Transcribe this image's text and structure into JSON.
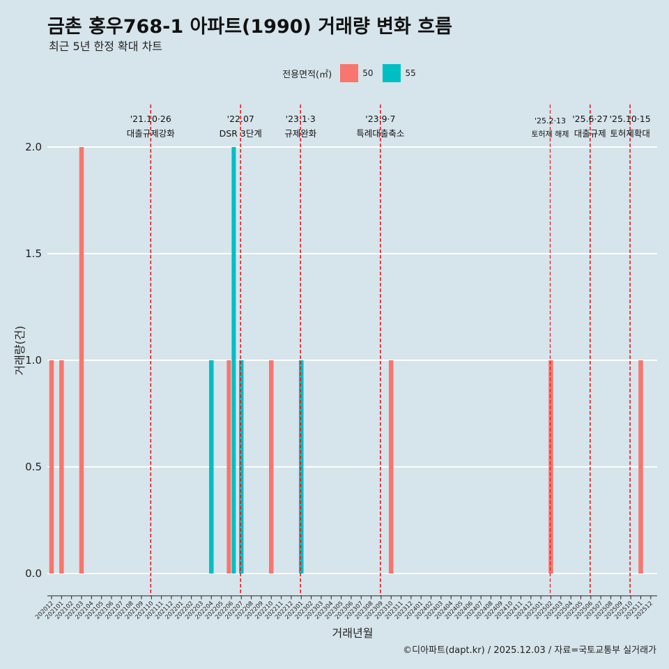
{
  "chart_data": {
    "type": "bar",
    "title": "금촌 홍우768-1 아파트(1990) 거래량 변화 흐름",
    "subtitle": "최근 5년 한정 확대 차트",
    "xlabel": "거래년월",
    "ylabel": "거래량(건)",
    "ylim": [
      0,
      2
    ],
    "yticks": [
      "0.0",
      "0.5",
      "1.0",
      "1.5",
      "2.0"
    ],
    "legend": {
      "title": "전용면적(㎡)",
      "position": "top",
      "entries": [
        {
          "name": "50",
          "color": "#f8766d"
        },
        {
          "name": "55",
          "color": "#00bfc4"
        }
      ]
    },
    "categories": [
      "202012",
      "202101",
      "202102",
      "202103",
      "202104",
      "202105",
      "202106",
      "202107",
      "202108",
      "202109",
      "202110",
      "202111",
      "202112",
      "202201",
      "202202",
      "202203",
      "202204",
      "202205",
      "202206",
      "202207",
      "202208",
      "202209",
      "202210",
      "202211",
      "202212",
      "202301",
      "202302",
      "202303",
      "202304",
      "202305",
      "202306",
      "202307",
      "202308",
      "202309",
      "202310",
      "202311",
      "202312",
      "202401",
      "202402",
      "202403",
      "202404",
      "202405",
      "202406",
      "202407",
      "202408",
      "202409",
      "202410",
      "202411",
      "202412",
      "202501",
      "202502",
      "202503",
      "202504",
      "202505",
      "202506",
      "202507",
      "202508",
      "202509",
      "202510",
      "202511",
      "202512"
    ],
    "series": [
      {
        "name": "50",
        "color": "#f8766d",
        "points": [
          {
            "x": "202012",
            "y": 1
          },
          {
            "x": "202101",
            "y": 1
          },
          {
            "x": "202103",
            "y": 2
          },
          {
            "x": "202206",
            "y": 1
          },
          {
            "x": "202210",
            "y": 1
          },
          {
            "x": "202310",
            "y": 1
          },
          {
            "x": "202502",
            "y": 1
          },
          {
            "x": "202511",
            "y": 1
          }
        ]
      },
      {
        "name": "55",
        "color": "#00bfc4",
        "points": [
          {
            "x": "202204",
            "y": 1
          },
          {
            "x": "202206",
            "y": 2
          },
          {
            "x": "202207",
            "y": 1
          },
          {
            "x": "202301",
            "y": 1
          }
        ]
      }
    ],
    "annotations": [
      {
        "date": "'21.10·26",
        "label": "대출규제강화",
        "x": "202110"
      },
      {
        "date": "'22.07",
        "label": "DSR 3단계",
        "x": "202207"
      },
      {
        "date": "'23.1·3",
        "label": "규제완화",
        "x": "202301"
      },
      {
        "date": "'23.9·7",
        "label": "특례대출축소",
        "x": "202309"
      },
      {
        "date": "'25.2·13",
        "label": "토허제 해제",
        "x": "202502"
      },
      {
        "date": "'25.6·27",
        "label": "대출규제",
        "x": "202506"
      },
      {
        "date": "'25.10·15",
        "label": "토허제확대",
        "x": "202510"
      }
    ],
    "caption": "©디아파트(dapt.kr) / 2025.12.03 / 자료=국토교통부 실거래가"
  }
}
